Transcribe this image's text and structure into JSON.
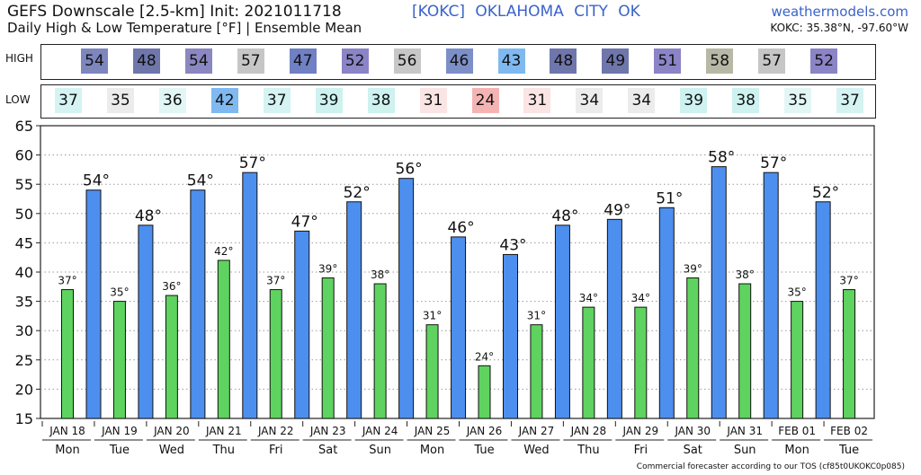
{
  "header": {
    "title": "GEFS Downscale [2.5-km] Init: 2021011718",
    "subtitle": "Daily High & Low Temperature [°F] | Ensemble Mean",
    "station": "[KOKC]  OKLAHOMA CITY  OK",
    "site": "weathermodels.com",
    "coords": "KOKC: 35.38°N, -97.60°W"
  },
  "footer": "Commercial forecaster according to our TOS (cf85t0UKOKC0p085)",
  "labels": {
    "high": "HIGH",
    "low": "LOW"
  },
  "colors": {
    "high_bar": "#4d8fee",
    "low_bar": "#5fd35f",
    "high_cells": [
      "#7d86bd",
      "#6f76ab",
      "#8b87c0",
      "#c6c6c6",
      "#6f80c4",
      "#8b84c6",
      "#c7c7c7",
      "#7d8fc9",
      "#7fb9f0",
      "#6f76ab",
      "#6f76ab",
      "#8b84c6",
      "#b8b8a6",
      "#c6c6c6",
      "#8b84c6"
    ],
    "low_cells": [
      "#d5f3f3",
      "#ececec",
      "#e2f6f6",
      "#7fb9f0",
      "#d5f3f3",
      "#cdf2f0",
      "#cdf2f0",
      "#fbe4e4",
      "#f5b4b4",
      "#fbe4e4",
      "#ececec",
      "#ececec",
      "#cdf2f0",
      "#cdf2f0",
      "#e2f6f6",
      "#d5f3f3"
    ]
  },
  "chart_data": {
    "type": "bar",
    "categories": [
      "JAN 18",
      "JAN 19",
      "JAN 20",
      "JAN 21",
      "JAN 22",
      "JAN 23",
      "JAN 24",
      "JAN 25",
      "JAN 26",
      "JAN 27",
      "JAN 28",
      "JAN 29",
      "JAN 30",
      "JAN 31",
      "FEB 01",
      "FEB 02"
    ],
    "weekdays": [
      "Mon",
      "Tue",
      "Wed",
      "Thu",
      "Fri",
      "Sat",
      "Sun",
      "Mon",
      "Tue",
      "Wed",
      "Thu",
      "Fri",
      "Sat",
      "Sun",
      "Mon",
      "Tue"
    ],
    "series": [
      {
        "role": "low",
        "values": [
          37,
          35,
          36,
          42,
          37,
          39,
          38,
          31,
          24,
          31,
          34,
          34,
          39,
          38,
          35,
          37
        ]
      },
      {
        "role": "high",
        "values": [
          null,
          54,
          48,
          54,
          57,
          47,
          52,
          56,
          46,
          43,
          48,
          49,
          51,
          58,
          57,
          52
        ]
      }
    ],
    "high_strip": [
      54,
      48,
      54,
      57,
      47,
      52,
      56,
      46,
      43,
      48,
      49,
      51,
      58,
      57,
      52
    ],
    "low_strip": [
      37,
      35,
      36,
      42,
      37,
      39,
      38,
      31,
      24,
      31,
      34,
      34,
      39,
      38,
      35,
      37
    ],
    "ylim": [
      15,
      65
    ],
    "yticks": [
      15,
      20,
      25,
      30,
      35,
      40,
      45,
      50,
      55,
      60,
      65
    ],
    "degree_symbol": "°",
    "grid": true
  }
}
